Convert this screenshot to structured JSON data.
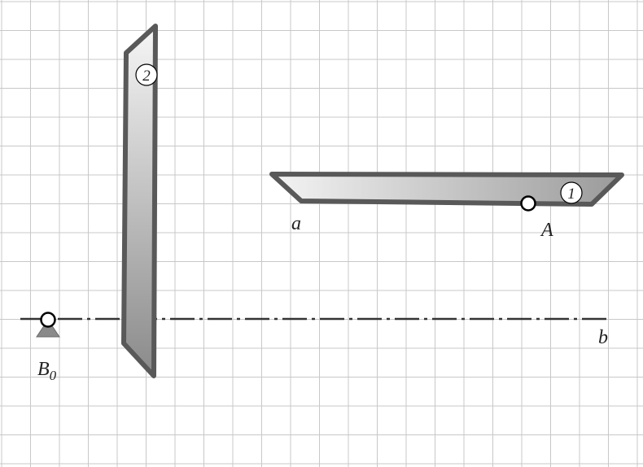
{
  "labels": {
    "a": "a",
    "A": "A",
    "b": "b",
    "B0_main": "B",
    "B0_sub": "0"
  },
  "markers": {
    "plate_1": "1",
    "plate_2": "2"
  },
  "colors": {
    "grid": "#c8c8c8",
    "plate_border": "#595959",
    "plate_fill_light": "#f4f4f4",
    "plate_fill_dark": "#8c8c8c",
    "axis_line": "#333333",
    "support": "#8a8a8a"
  }
}
